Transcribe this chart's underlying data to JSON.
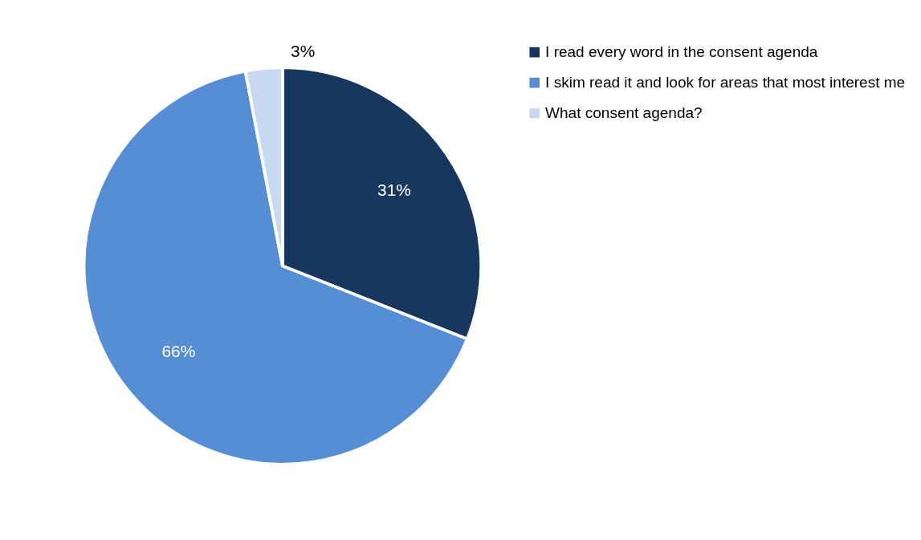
{
  "chart_data": {
    "type": "pie",
    "categories": [
      "I read every word in the consent agenda",
      "I skim read it and look for areas that most interest me",
      "What consent agenda?"
    ],
    "values": [
      31,
      66,
      3
    ],
    "colors": [
      "#17375e",
      "#558ed5",
      "#c6d9f1"
    ],
    "value_labels": [
      "31%",
      "66%",
      "3%"
    ],
    "legend": "right"
  }
}
